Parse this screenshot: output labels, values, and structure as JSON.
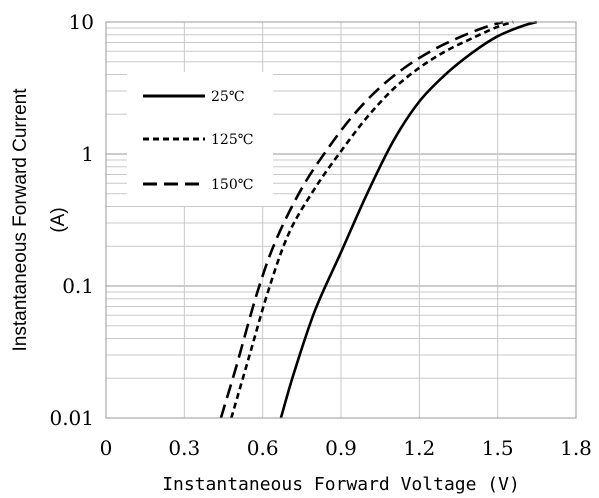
{
  "chart_data": {
    "type": "line",
    "title": "",
    "xlabel": "Instantaneous Forward Voltage (V)",
    "ylabel_lines": [
      "Instantaneous Forward Current",
      "(A)"
    ],
    "xlim": [
      0,
      1.8
    ],
    "ylim": [
      0.01,
      10
    ],
    "yscale": "log",
    "x_ticks": [
      0,
      0.3,
      0.6,
      0.9,
      1.2,
      1.5,
      1.8
    ],
    "x_tick_labels": [
      "0",
      "0.3",
      "0.6",
      "0.9",
      "1.2",
      "1.5",
      "1.8"
    ],
    "y_ticks": [
      0.01,
      0.1,
      1,
      10
    ],
    "y_tick_labels": [
      "0.01",
      "0.1",
      "1",
      "10"
    ],
    "grid": true,
    "legend_position": "top-left",
    "series": [
      {
        "name": "25℃",
        "dash": "solid",
        "points": [
          [
            0.67,
            0.01
          ],
          [
            0.72,
            0.022
          ],
          [
            0.8,
            0.065
          ],
          [
            0.9,
            0.18
          ],
          [
            1.0,
            0.5
          ],
          [
            1.1,
            1.25
          ],
          [
            1.2,
            2.5
          ],
          [
            1.3,
            4.0
          ],
          [
            1.4,
            5.8
          ],
          [
            1.5,
            7.8
          ],
          [
            1.6,
            9.4
          ],
          [
            1.65,
            10
          ]
        ]
      },
      {
        "name": "125℃",
        "dash": "short",
        "points": [
          [
            0.48,
            0.01
          ],
          [
            0.55,
            0.03
          ],
          [
            0.62,
            0.09
          ],
          [
            0.7,
            0.25
          ],
          [
            0.8,
            0.55
          ],
          [
            0.9,
            1.05
          ],
          [
            1.0,
            1.9
          ],
          [
            1.1,
            3.1
          ],
          [
            1.2,
            4.5
          ],
          [
            1.3,
            6.0
          ],
          [
            1.4,
            7.5
          ],
          [
            1.5,
            9.2
          ],
          [
            1.56,
            10
          ]
        ]
      },
      {
        "name": "150℃",
        "dash": "long",
        "points": [
          [
            0.44,
            0.01
          ],
          [
            0.5,
            0.025
          ],
          [
            0.58,
            0.09
          ],
          [
            0.65,
            0.22
          ],
          [
            0.75,
            0.55
          ],
          [
            0.85,
            1.1
          ],
          [
            0.95,
            2.0
          ],
          [
            1.05,
            3.2
          ],
          [
            1.15,
            4.6
          ],
          [
            1.25,
            6.1
          ],
          [
            1.35,
            7.6
          ],
          [
            1.45,
            9.1
          ],
          [
            1.52,
            10
          ]
        ]
      }
    ]
  }
}
